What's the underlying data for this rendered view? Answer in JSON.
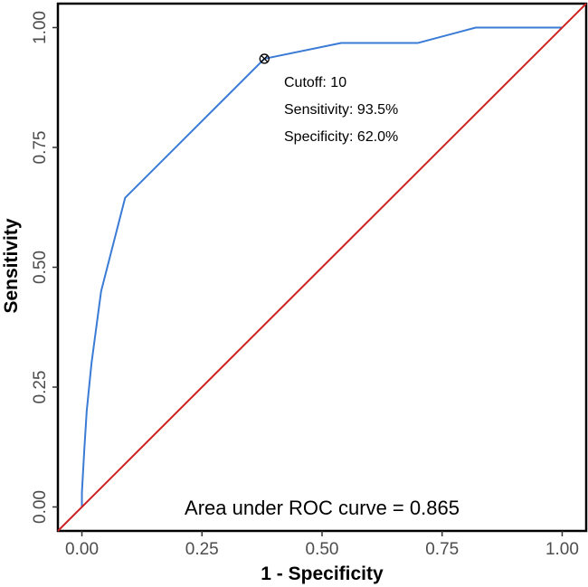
{
  "chart_data": {
    "type": "line",
    "xlabel": "1 - Specificity",
    "ylabel": "Sensitivity",
    "xlim": [
      -0.05,
      1.05
    ],
    "ylim": [
      -0.05,
      1.05
    ],
    "x_ticks": [
      0.0,
      0.25,
      0.5,
      0.75,
      1.0
    ],
    "x_tick_labels": [
      "0.00",
      "0.25",
      "0.50",
      "0.75",
      "1.00"
    ],
    "y_ticks": [
      0.0,
      0.25,
      0.5,
      0.75,
      1.0
    ],
    "y_tick_labels": [
      "0.00",
      "0.25",
      "0.50",
      "0.75",
      "1.00"
    ],
    "grid": false,
    "series": [
      {
        "color": "#3a7bd5",
        "x": [
          0.0,
          0.0,
          0.005,
          0.01,
          0.02,
          0.04,
          0.09,
          0.19,
          0.38,
          0.54,
          0.7,
          0.82,
          1.0
        ],
        "y": [
          0.0,
          0.03,
          0.12,
          0.2,
          0.3,
          0.45,
          0.645,
          0.745,
          0.935,
          0.968,
          0.968,
          1.0,
          1.0
        ]
      },
      {
        "color": "#cc2222",
        "x": [
          -0.05,
          1.05
        ],
        "y": [
          -0.05,
          1.05
        ]
      }
    ],
    "cutoff_point": {
      "x": 0.38,
      "y": 0.935
    },
    "annotations": {
      "cutoff": "Cutoff: 10",
      "sensitivity": "Sensitivity: 93.5%",
      "specificity": "Specificity: 62.0%",
      "auc": "Area under ROC curve =  0.865"
    }
  }
}
